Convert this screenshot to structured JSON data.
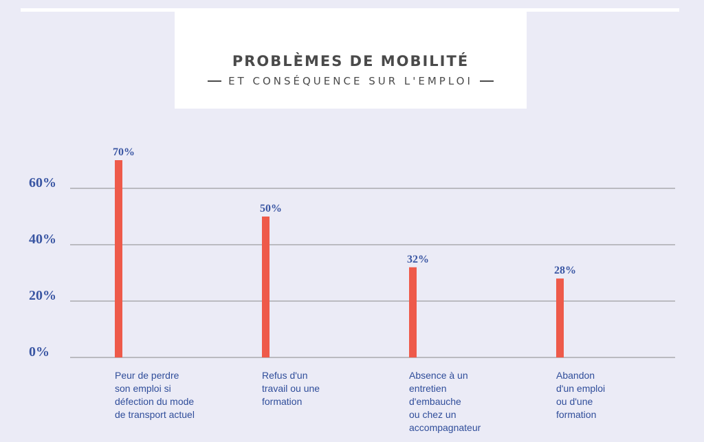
{
  "header": {
    "title": "PROBLÈMES DE MOBILITÉ",
    "subtitle": "ET CONSÉQUENCE SUR L'EMPLOI"
  },
  "colors": {
    "background": "#ebebf6",
    "bar": "#ee5a4a",
    "text_blue": "#3a56a3",
    "grid": "#8a8a8a"
  },
  "chart_data": {
    "type": "bar",
    "title": "PROBLÈMES DE MOBILITÉ",
    "subtitle": "ET CONSÉQUENCE SUR L'EMPLOI",
    "categories": [
      [
        "Peur de perdre",
        "son emploi si",
        "défection du mode",
        "de transport actuel"
      ],
      [
        "Refus d'un",
        "travail ou une",
        "formation"
      ],
      [
        "Absence à un",
        "entretien",
        "d'embauche",
        "ou chez un",
        "accompagnateur"
      ],
      [
        "Abandon",
        "d'un emploi",
        "ou d'une",
        "formation"
      ]
    ],
    "values": [
      70,
      50,
      32,
      28
    ],
    "value_labels": [
      "70%",
      "50%",
      "32%",
      "28%"
    ],
    "yticks": [
      0,
      20,
      40,
      60
    ],
    "ytick_labels": [
      "0%",
      "20%",
      "40%",
      "60%"
    ],
    "ylim": [
      0,
      70
    ],
    "grid": true,
    "xlabel": "",
    "ylabel": ""
  }
}
